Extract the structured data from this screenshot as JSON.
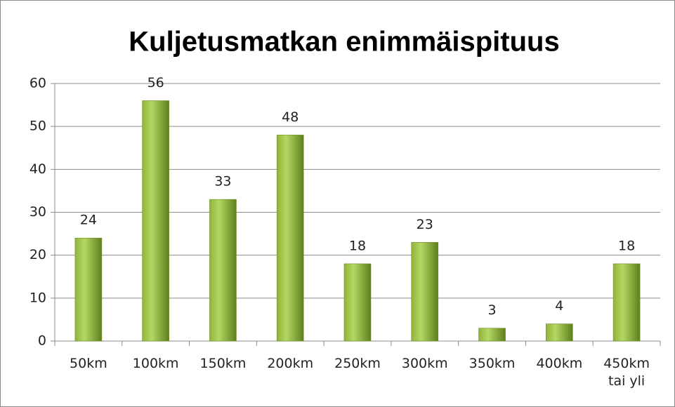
{
  "chart_data": {
    "type": "bar",
    "title": "Kuljetusmatkan enimmäispituus",
    "categories": [
      "50km",
      "100km",
      "150km",
      "200km",
      "250km",
      "300km",
      "350km",
      "400km",
      "450km tai yli"
    ],
    "values": [
      24,
      56,
      33,
      48,
      18,
      23,
      3,
      4,
      18
    ],
    "color": "#8db332",
    "ylim": [
      0,
      60
    ],
    "yticks": [
      0,
      10,
      20,
      30,
      40,
      50,
      60
    ],
    "grid": true
  }
}
